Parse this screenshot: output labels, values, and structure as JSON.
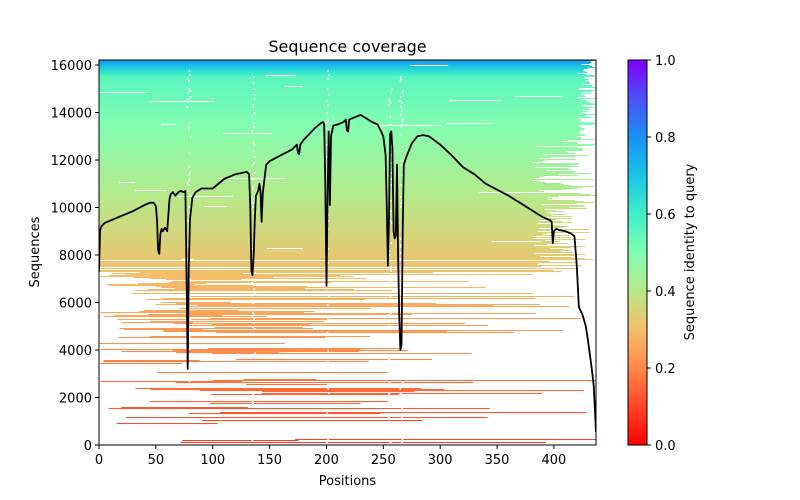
{
  "chart_data": {
    "type": "heatmap",
    "title": "Sequence coverage",
    "xlabel": "Positions",
    "ylabel": "Sequences",
    "xlim": [
      0,
      437
    ],
    "ylim": [
      0,
      16210
    ],
    "xticks": [
      0,
      50,
      100,
      150,
      200,
      250,
      300,
      350,
      400
    ],
    "yticks": [
      0,
      2000,
      4000,
      6000,
      8000,
      10000,
      12000,
      14000,
      16000
    ],
    "grid": false,
    "colorbar": {
      "label": "Sequence identity to query",
      "colormap": "rainbow_r",
      "range": [
        0,
        1
      ],
      "ticks": [
        "0.0",
        "0.2",
        "0.4",
        "0.6",
        "0.8",
        "1.0"
      ],
      "tick_values": [
        0,
        0.2,
        0.4,
        0.6,
        0.8,
        1.0
      ],
      "placement": "right"
    },
    "heatmap_description": "Rows are aligned sequences sorted by identity to query (low identity at bottom, red; high identity at top, cyan/blue). Coverage is dense in the upper rows and sparse/gappy in the lower rows; columns near positions ~78, ~135, ~200, ~255 and ~265 show frequent gaps.",
    "series": [
      {
        "name": "coverage",
        "color": "#000000",
        "x": [
          0,
          1,
          2,
          5,
          10,
          20,
          30,
          40,
          45,
          48,
          50,
          51,
          52,
          53,
          54,
          55,
          56,
          58,
          60,
          62,
          63,
          65,
          67,
          70,
          72,
          74,
          75,
          76,
          77,
          78,
          79,
          80,
          82,
          85,
          90,
          100,
          110,
          115,
          120,
          125,
          130,
          132,
          133,
          134,
          135,
          136,
          137,
          138,
          140,
          141,
          142,
          143,
          144,
          145,
          147,
          150,
          160,
          170,
          174,
          175,
          176,
          177,
          180,
          185,
          190,
          195,
          197,
          198,
          199,
          200,
          201,
          202,
          203,
          204,
          206,
          210,
          215,
          217,
          218,
          219,
          220,
          225,
          230,
          235,
          240,
          245,
          248,
          250,
          252,
          253,
          254,
          255,
          256,
          257,
          258,
          259,
          260,
          261,
          262,
          263,
          264,
          265,
          266,
          267,
          268,
          270,
          275,
          280,
          285,
          290,
          300,
          310,
          320,
          330,
          340,
          350,
          360,
          370,
          380,
          390,
          395,
          397,
          398,
          399,
          400,
          402,
          405,
          410,
          415,
          418,
          420,
          422,
          425,
          428,
          430,
          433,
          435,
          437
        ],
        "y": [
          7300,
          9050,
          9200,
          9350,
          9450,
          9650,
          9850,
          10100,
          10200,
          10200,
          10050,
          9500,
          8200,
          8050,
          8900,
          9100,
          9000,
          9150,
          9000,
          10350,
          10550,
          10650,
          10500,
          10650,
          10700,
          10650,
          10650,
          10700,
          7000,
          3200,
          7500,
          9500,
          10400,
          10650,
          10800,
          10800,
          11200,
          11300,
          11400,
          11450,
          11500,
          11400,
          10000,
          7300,
          7150,
          8000,
          9500,
          10500,
          10700,
          11000,
          10700,
          9400,
          10600,
          11000,
          11800,
          11950,
          12200,
          12450,
          12650,
          12300,
          12250,
          12650,
          12850,
          13100,
          13350,
          13550,
          13600,
          13500,
          11000,
          6700,
          10500,
          13200,
          10100,
          13000,
          13450,
          13500,
          13600,
          13700,
          13250,
          13200,
          13700,
          13800,
          13900,
          13750,
          13600,
          13500,
          13200,
          13000,
          12200,
          10200,
          7550,
          9500,
          13100,
          13200,
          12500,
          9000,
          8700,
          8800,
          11800,
          8000,
          5500,
          4000,
          4200,
          9000,
          11800,
          12100,
          12700,
          13000,
          13050,
          13000,
          12650,
          12200,
          11700,
          11400,
          11000,
          10750,
          10500,
          10200,
          9900,
          9600,
          9500,
          9450,
          9400,
          8500,
          9000,
          9100,
          9050,
          9000,
          8900,
          8800,
          7600,
          5800,
          5500,
          5000,
          4400,
          3300,
          2500,
          550
        ]
      }
    ]
  }
}
